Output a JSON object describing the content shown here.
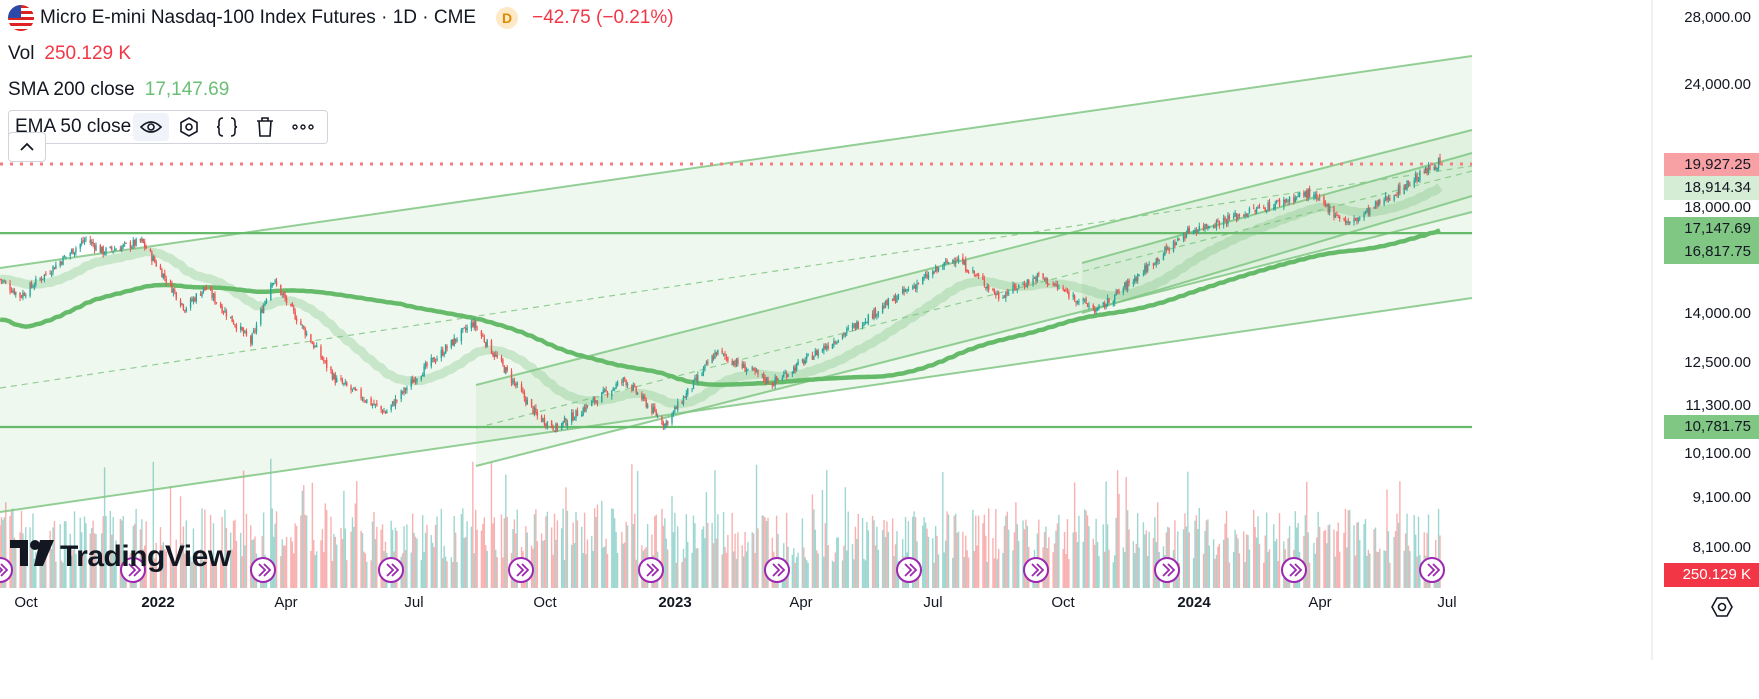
{
  "header": {
    "symbol_title": "Micro E-mini Nasdaq-100 Index Futures · 1D · CME",
    "delay_badge": "D",
    "change": "−42.75 (−0.21%)",
    "flag_icon": "us-flag-icon"
  },
  "indicators": {
    "vol_label": "Vol",
    "vol_value": "250.129 K",
    "sma_label": "SMA 200 close",
    "sma_value": "17,147.69",
    "ema_label": "EMA 50 close",
    "ema_icons": [
      "eye-icon",
      "settings-icon",
      "source-code-icon",
      "trash-icon",
      "more-icon"
    ]
  },
  "branding": {
    "logo_text": "TradingView"
  },
  "colors": {
    "up": "#26a69a",
    "down": "#ef5350",
    "channel": "#81c784",
    "ma": "#66bb6a",
    "price_line": "#f77c80",
    "price_label_bg": "#f7a1a5",
    "volume_label_bg": "#f23645"
  },
  "price_axis": {
    "ticks": [
      "28,000.00",
      "24,000.00",
      "18,000.00",
      "14,000.00",
      "12,500.00",
      "11,300.00",
      "10,100.00",
      "9,100.00",
      "8,100.00"
    ],
    "labels": [
      {
        "name": "last-price-label",
        "text": "19,927.25",
        "kind": "last"
      },
      {
        "name": "level-label-1",
        "text": "18,914.34",
        "kind": "light"
      },
      {
        "name": "sma-label",
        "text": "17,147.69",
        "kind": "green"
      },
      {
        "name": "level-label-2",
        "text": "16,817.75",
        "kind": "green"
      },
      {
        "name": "level-label-3",
        "text": "10,781.75",
        "kind": "green"
      }
    ],
    "volume_label": "250.129 K"
  },
  "time_axis": {
    "ticks": [
      {
        "text": "Oct",
        "bold": false
      },
      {
        "text": "2022",
        "bold": true
      },
      {
        "text": "Apr",
        "bold": false
      },
      {
        "text": "Jul",
        "bold": false
      },
      {
        "text": "Oct",
        "bold": false
      },
      {
        "text": "2023",
        "bold": true
      },
      {
        "text": "Apr",
        "bold": false
      },
      {
        "text": "Jul",
        "bold": false
      },
      {
        "text": "Oct",
        "bold": false
      },
      {
        "text": "2024",
        "bold": true
      },
      {
        "text": "Apr",
        "bold": false
      },
      {
        "text": "Jul",
        "bold": false
      }
    ]
  },
  "chart_data": {
    "type": "candlestick",
    "title": "Micro E-mini Nasdaq-100 Index Futures · 1D · CME",
    "x_range": [
      "2021-09-20",
      "2024-06-21"
    ],
    "y_range_visible": [
      8100,
      28000
    ],
    "y_scale": "log",
    "last_price": 19927.25,
    "horizontal_levels": [
      16817.75,
      10781.75
    ],
    "price_path": [
      {
        "date": "2021-09-20",
        "close": 15200
      },
      {
        "date": "2021-10-04",
        "close": 14600
      },
      {
        "date": "2021-11-19",
        "close": 16700
      },
      {
        "date": "2021-12-01",
        "close": 16200
      },
      {
        "date": "2021-12-28",
        "close": 16600
      },
      {
        "date": "2022-01-27",
        "close": 14200
      },
      {
        "date": "2022-02-10",
        "close": 14900
      },
      {
        "date": "2022-03-14",
        "close": 13100
      },
      {
        "date": "2022-03-29",
        "close": 15200
      },
      {
        "date": "2022-05-12",
        "close": 12000
      },
      {
        "date": "2022-06-16",
        "close": 11100
      },
      {
        "date": "2022-07-08",
        "close": 12100
      },
      {
        "date": "2022-08-16",
        "close": 13700
      },
      {
        "date": "2022-09-30",
        "close": 11000
      },
      {
        "date": "2022-10-13",
        "close": 10700
      },
      {
        "date": "2022-11-30",
        "close": 12000
      },
      {
        "date": "2022-12-28",
        "close": 10800
      },
      {
        "date": "2023-02-02",
        "close": 12800
      },
      {
        "date": "2023-03-13",
        "close": 11900
      },
      {
        "date": "2023-05-25",
        "close": 14100
      },
      {
        "date": "2023-07-19",
        "close": 16000
      },
      {
        "date": "2023-08-18",
        "close": 14600
      },
      {
        "date": "2023-09-15",
        "close": 15300
      },
      {
        "date": "2023-10-26",
        "close": 14100
      },
      {
        "date": "2023-12-28",
        "close": 17000
      },
      {
        "date": "2024-03-21",
        "close": 18600
      },
      {
        "date": "2024-04-19",
        "close": 17300
      },
      {
        "date": "2024-06-20",
        "close": 20000
      },
      {
        "date": "2024-06-21",
        "close": 19927.25
      }
    ],
    "series": [
      {
        "name": "SMA 200 close",
        "last": 17147.69
      },
      {
        "name": "EMA 50 close"
      },
      {
        "name": "Vol",
        "last": "250.129 K"
      }
    ],
    "grid": false
  }
}
